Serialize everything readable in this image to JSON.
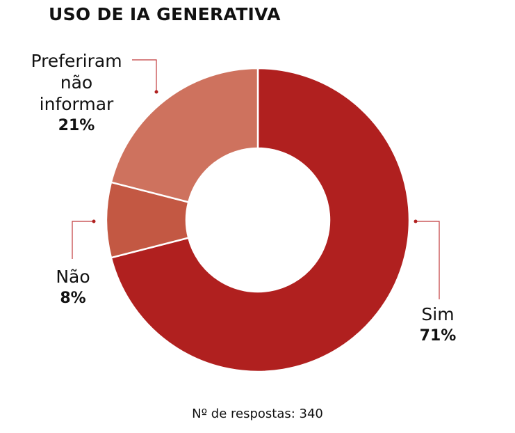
{
  "chart_data": {
    "type": "pie",
    "title": "USO DE IA GENERATIVA",
    "donut": true,
    "slices": [
      {
        "label": "Sim",
        "value": 71,
        "value_label": "71%",
        "color": "#b0201f"
      },
      {
        "label": "Não",
        "value": 8,
        "value_label": "8%",
        "color": "#c35843"
      },
      {
        "label": "Preferiram não informar",
        "value": 21,
        "value_label": "21%",
        "color": "#ce725e"
      }
    ],
    "footnote": "Nº de respostas: 340"
  }
}
